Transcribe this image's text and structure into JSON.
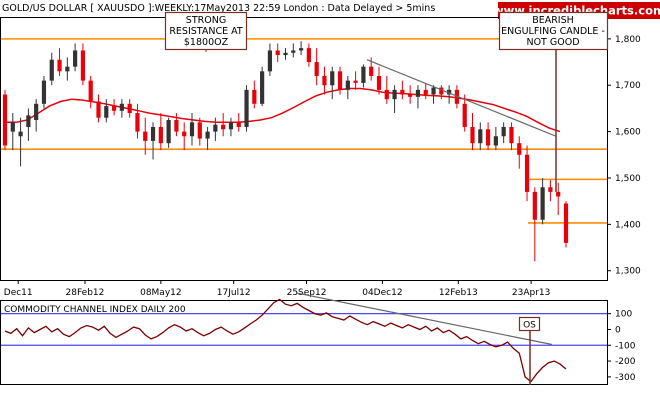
{
  "header": {
    "title": "GOLD/US DOLLAR [ XAUUSDO ]:WEEKLY:17May2013 22:59 London : Data Delayed > 5mins",
    "watermark": "www.incrediblecharts.com"
  },
  "annotations": {
    "resistance": [
      "STRONG",
      "RESISTANCE AT",
      "$1800OZ"
    ],
    "bearish": [
      "BEARISH",
      "ENGULFING CANDLE -",
      "NOT GOOD"
    ],
    "os": "OS"
  },
  "colors": {
    "up": "#333333",
    "down": "#e8000b",
    "ma": "#e8000b",
    "support": "#ff8c00",
    "trend": "#666666",
    "cci": "#7a0000",
    "band": "#4a4af0"
  },
  "chart_data": [
    {
      "type": "candlestick",
      "title": "GOLD/US DOLLAR [ XAUUSDO ]:WEEKLY:17May2013 22:59 London : Data Delayed > 5mins",
      "x_tick_labels": [
        "Dec11",
        "28Feb12",
        "08May12",
        "17Jul12",
        "25Sep12",
        "04Dec12",
        "12Feb13",
        "23Apr13"
      ],
      "y_tick_labels": [
        "1,300",
        "1,400",
        "1,500",
        "1,600",
        "1,700",
        "1,800"
      ],
      "ylim": [
        1280,
        1845
      ],
      "horizontal_levels": [
        1800,
        1562,
        1497,
        1403
      ],
      "trendline": [
        [
          1755,
          1590
        ]
      ],
      "moving_average": [
        1620,
        1620,
        1625,
        1640,
        1655,
        1665,
        1670,
        1668,
        1664,
        1660,
        1655,
        1650,
        1645,
        1640,
        1636,
        1632,
        1628,
        1625,
        1622,
        1620,
        1620,
        1620,
        1622,
        1625,
        1630,
        1640,
        1652,
        1665,
        1677,
        1685,
        1690,
        1693,
        1693,
        1690,
        1685,
        1683,
        1682,
        1680,
        1678,
        1677,
        1675,
        1672,
        1668,
        1663,
        1658,
        1650,
        1642,
        1633,
        1620,
        1608,
        1600
      ],
      "candles": [
        {
          "o": 1680,
          "h": 1690,
          "l": 1560,
          "c": 1570
        },
        {
          "o": 1600,
          "h": 1640,
          "l": 1560,
          "c": 1620
        },
        {
          "o": 1590,
          "h": 1630,
          "l": 1525,
          "c": 1600
        },
        {
          "o": 1610,
          "h": 1650,
          "l": 1580,
          "c": 1635
        },
        {
          "o": 1625,
          "h": 1670,
          "l": 1600,
          "c": 1660
        },
        {
          "o": 1660,
          "h": 1720,
          "l": 1650,
          "c": 1710
        },
        {
          "o": 1710,
          "h": 1770,
          "l": 1700,
          "c": 1755
        },
        {
          "o": 1755,
          "h": 1780,
          "l": 1720,
          "c": 1730
        },
        {
          "o": 1730,
          "h": 1760,
          "l": 1710,
          "c": 1740
        },
        {
          "o": 1740,
          "h": 1790,
          "l": 1730,
          "c": 1775
        },
        {
          "o": 1775,
          "h": 1790,
          "l": 1700,
          "c": 1710
        },
        {
          "o": 1710,
          "h": 1720,
          "l": 1650,
          "c": 1665
        },
        {
          "o": 1665,
          "h": 1680,
          "l": 1620,
          "c": 1630
        },
        {
          "o": 1630,
          "h": 1670,
          "l": 1620,
          "c": 1655
        },
        {
          "o": 1655,
          "h": 1670,
          "l": 1635,
          "c": 1645
        },
        {
          "o": 1645,
          "h": 1670,
          "l": 1630,
          "c": 1660
        },
        {
          "o": 1660,
          "h": 1670,
          "l": 1630,
          "c": 1640
        },
        {
          "o": 1640,
          "h": 1660,
          "l": 1585,
          "c": 1600
        },
        {
          "o": 1600,
          "h": 1630,
          "l": 1550,
          "c": 1580
        },
        {
          "o": 1580,
          "h": 1620,
          "l": 1540,
          "c": 1610
        },
        {
          "o": 1610,
          "h": 1640,
          "l": 1560,
          "c": 1575
        },
        {
          "o": 1575,
          "h": 1630,
          "l": 1565,
          "c": 1625
        },
        {
          "o": 1625,
          "h": 1640,
          "l": 1590,
          "c": 1600
        },
        {
          "o": 1600,
          "h": 1620,
          "l": 1560,
          "c": 1590
        },
        {
          "o": 1590,
          "h": 1640,
          "l": 1570,
          "c": 1620
        },
        {
          "o": 1620,
          "h": 1630,
          "l": 1570,
          "c": 1585
        },
        {
          "o": 1585,
          "h": 1610,
          "l": 1560,
          "c": 1600
        },
        {
          "o": 1600,
          "h": 1630,
          "l": 1580,
          "c": 1615
        },
        {
          "o": 1615,
          "h": 1640,
          "l": 1590,
          "c": 1605
        },
        {
          "o": 1605,
          "h": 1630,
          "l": 1590,
          "c": 1620
        },
        {
          "o": 1620,
          "h": 1640,
          "l": 1600,
          "c": 1610
        },
        {
          "o": 1610,
          "h": 1700,
          "l": 1600,
          "c": 1690
        },
        {
          "o": 1690,
          "h": 1710,
          "l": 1650,
          "c": 1660
        },
        {
          "o": 1660,
          "h": 1740,
          "l": 1655,
          "c": 1730
        },
        {
          "o": 1730,
          "h": 1790,
          "l": 1720,
          "c": 1775
        },
        {
          "o": 1775,
          "h": 1790,
          "l": 1750,
          "c": 1765
        },
        {
          "o": 1765,
          "h": 1780,
          "l": 1755,
          "c": 1770
        },
        {
          "o": 1770,
          "h": 1790,
          "l": 1760,
          "c": 1775
        },
        {
          "o": 1775,
          "h": 1795,
          "l": 1765,
          "c": 1780
        },
        {
          "o": 1780,
          "h": 1790,
          "l": 1740,
          "c": 1750
        },
        {
          "o": 1750,
          "h": 1780,
          "l": 1700,
          "c": 1720
        },
        {
          "o": 1720,
          "h": 1740,
          "l": 1680,
          "c": 1700
        },
        {
          "o": 1700,
          "h": 1740,
          "l": 1670,
          "c": 1730
        },
        {
          "o": 1730,
          "h": 1740,
          "l": 1680,
          "c": 1690
        },
        {
          "o": 1690,
          "h": 1720,
          "l": 1670,
          "c": 1710
        },
        {
          "o": 1710,
          "h": 1730,
          "l": 1690,
          "c": 1705
        },
        {
          "o": 1705,
          "h": 1745,
          "l": 1695,
          "c": 1740
        },
        {
          "o": 1740,
          "h": 1760,
          "l": 1710,
          "c": 1720
        },
        {
          "o": 1720,
          "h": 1740,
          "l": 1680,
          "c": 1690
        },
        {
          "o": 1690,
          "h": 1720,
          "l": 1660,
          "c": 1670
        },
        {
          "o": 1670,
          "h": 1700,
          "l": 1640,
          "c": 1690
        },
        {
          "o": 1690,
          "h": 1710,
          "l": 1670,
          "c": 1680
        },
        {
          "o": 1680,
          "h": 1700,
          "l": 1660,
          "c": 1675
        },
        {
          "o": 1675,
          "h": 1700,
          "l": 1650,
          "c": 1690
        },
        {
          "o": 1690,
          "h": 1705,
          "l": 1670,
          "c": 1680
        },
        {
          "o": 1680,
          "h": 1700,
          "l": 1660,
          "c": 1695
        },
        {
          "o": 1695,
          "h": 1700,
          "l": 1670,
          "c": 1680
        },
        {
          "o": 1680,
          "h": 1700,
          "l": 1660,
          "c": 1690
        },
        {
          "o": 1690,
          "h": 1700,
          "l": 1650,
          "c": 1660
        },
        {
          "o": 1660,
          "h": 1680,
          "l": 1600,
          "c": 1610
        },
        {
          "o": 1610,
          "h": 1640,
          "l": 1560,
          "c": 1575
        },
        {
          "o": 1575,
          "h": 1620,
          "l": 1560,
          "c": 1605
        },
        {
          "o": 1605,
          "h": 1620,
          "l": 1560,
          "c": 1570
        },
        {
          "o": 1570,
          "h": 1610,
          "l": 1560,
          "c": 1590
        },
        {
          "o": 1590,
          "h": 1620,
          "l": 1575,
          "c": 1610
        },
        {
          "o": 1610,
          "h": 1620,
          "l": 1560,
          "c": 1575
        },
        {
          "o": 1575,
          "h": 1590,
          "l": 1520,
          "c": 1550
        },
        {
          "o": 1550,
          "h": 1570,
          "l": 1450,
          "c": 1470
        },
        {
          "o": 1470,
          "h": 1480,
          "l": 1320,
          "c": 1410
        },
        {
          "o": 1410,
          "h": 1500,
          "l": 1400,
          "c": 1480
        },
        {
          "o": 1480,
          "h": 1495,
          "l": 1450,
          "c": 1470
        },
        {
          "o": 1470,
          "h": 1490,
          "l": 1420,
          "c": 1460
        },
        {
          "o": 1445,
          "h": 1450,
          "l": 1350,
          "c": 1360
        }
      ]
    },
    {
      "type": "line",
      "title": "COMMODITY CHANNEL INDEX DAILY 200",
      "y_tick_labels": [
        "100",
        "0",
        "-100",
        "-200",
        "-300"
      ],
      "ylim": [
        -345,
        180
      ],
      "bands": [
        100,
        -100
      ],
      "trendline": [
        [
          230,
          -95
        ]
      ],
      "values": [
        -10,
        -25,
        5,
        -40,
        10,
        -20,
        0,
        20,
        -15,
        5,
        -30,
        -45,
        -20,
        10,
        25,
        15,
        -5,
        20,
        -25,
        -50,
        -30,
        -10,
        15,
        5,
        -35,
        -60,
        -45,
        -20,
        10,
        30,
        15,
        -10,
        5,
        -20,
        -40,
        -25,
        0,
        15,
        -10,
        -30,
        -15,
        10,
        35,
        60,
        90,
        130,
        170,
        190,
        160,
        150,
        165,
        140,
        120,
        100,
        90,
        105,
        80,
        70,
        60,
        85,
        65,
        45,
        30,
        50,
        35,
        20,
        40,
        25,
        10,
        30,
        15,
        0,
        20,
        -10,
        10,
        -20,
        -5,
        -30,
        -60,
        -45,
        -70,
        -90,
        -75,
        -95,
        -110,
        -100,
        -80,
        -120,
        -150,
        -300,
        -330,
        -280,
        -240,
        -210,
        -200,
        -220,
        -250
      ]
    }
  ]
}
